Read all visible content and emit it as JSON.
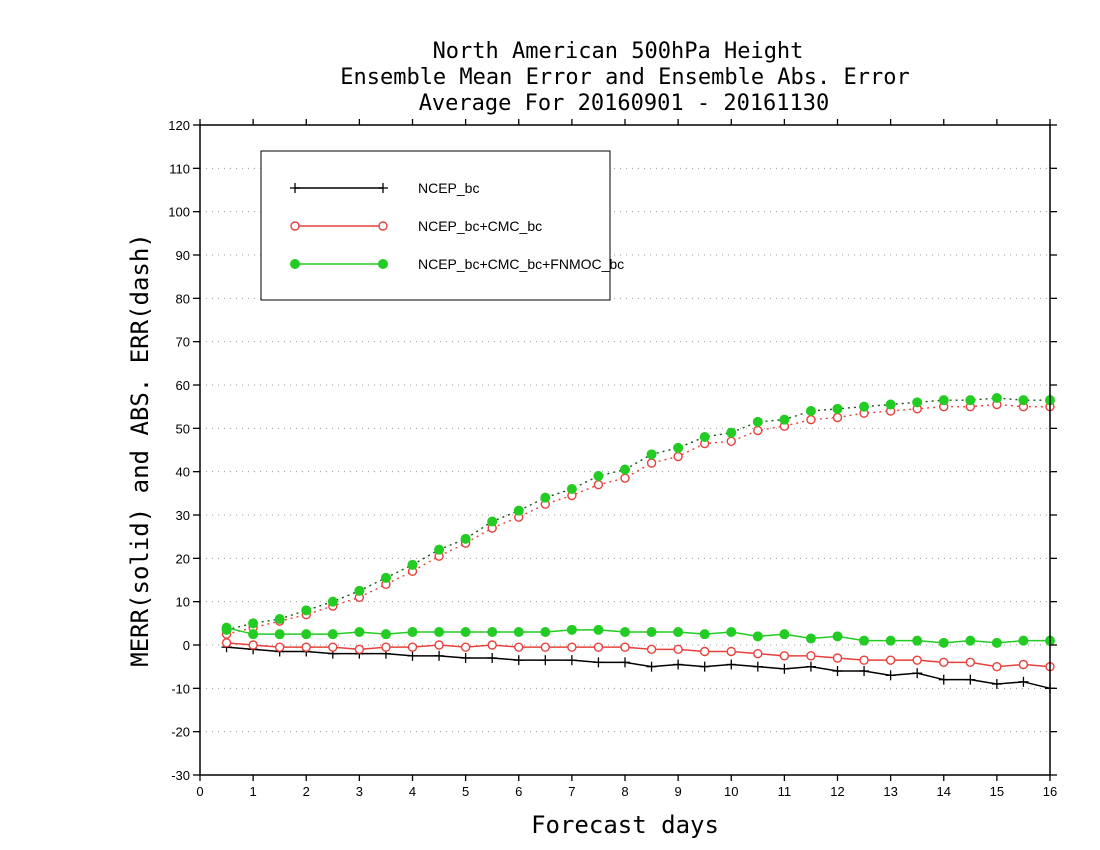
{
  "chart_data": {
    "type": "line",
    "title_lines": [
      "North American 500hPa Height",
      "Ensemble Mean Error and Ensemble Abs. Error",
      "Average For 20160901 - 20161130"
    ],
    "xlabel": "Forecast days",
    "ylabel": "MERR(solid) and ABS. ERR(dash)",
    "xlim": [
      0,
      16
    ],
    "ylim": [
      -30,
      120
    ],
    "xticks": [
      0,
      1,
      2,
      3,
      4,
      5,
      6,
      7,
      8,
      9,
      10,
      11,
      12,
      13,
      14,
      15,
      16
    ],
    "yticks": [
      -30,
      -20,
      -10,
      0,
      10,
      20,
      30,
      40,
      50,
      60,
      70,
      80,
      90,
      100,
      110,
      120
    ],
    "grid": true,
    "legend_position": "top-left",
    "x": [
      0.5,
      1,
      1.5,
      2,
      2.5,
      3,
      3.5,
      4,
      4.5,
      5,
      5.5,
      6,
      6.5,
      7,
      7.5,
      8,
      8.5,
      9,
      9.5,
      10,
      10.5,
      11,
      11.5,
      12,
      12.5,
      13,
      13.5,
      14,
      14.5,
      15,
      15.5,
      16
    ],
    "series": [
      {
        "name": "NCEP_bc",
        "color": "#000000",
        "marker": "plus",
        "mean_error": [
          -0.5,
          -1,
          -1.5,
          -1.5,
          -2,
          -2,
          -2,
          -2.5,
          -2.5,
          -3,
          -3,
          -3.5,
          -3.5,
          -3.5,
          -4,
          -4,
          -5,
          -4.5,
          -5,
          -4.5,
          -5,
          -5.5,
          -5,
          -6,
          -6,
          -7,
          -6.5,
          -8,
          -8,
          -9,
          -8.5,
          -10
        ],
        "abs_error": []
      },
      {
        "name": "NCEP_bc+CMC_bc",
        "color": "#e8403a",
        "marker": "open-circle",
        "mean_error": [
          0.5,
          0,
          -0.5,
          -0.5,
          -0.5,
          -1,
          -0.5,
          -0.5,
          0,
          -0.5,
          0,
          -0.5,
          -0.5,
          -0.5,
          -0.5,
          -0.5,
          -1,
          -1,
          -1.5,
          -1.5,
          -2,
          -2.5,
          -2.5,
          -3,
          -3.5,
          -3.5,
          -3.5,
          -4,
          -4,
          -5,
          -4.5,
          -5
        ],
        "abs_error": [
          2.5,
          4,
          5.5,
          7,
          9,
          11,
          14,
          17,
          20.5,
          23.5,
          27,
          29.5,
          32.5,
          34.5,
          37,
          38.5,
          42,
          43.5,
          46.5,
          47,
          49.5,
          50.5,
          52,
          52.5,
          53.5,
          54,
          54.5,
          55,
          55,
          55.5,
          55,
          55
        ]
      },
      {
        "name": "NCEP_bc+CMC_bc+FNMOC_bc",
        "color": "#22cc22",
        "marker": "filled-circle",
        "mean_error": [
          4,
          2.5,
          2.5,
          2.5,
          2.5,
          3,
          2.5,
          3,
          3,
          3,
          3,
          3,
          3,
          3.5,
          3.5,
          3,
          3,
          3,
          2.5,
          3,
          2,
          2.5,
          1.5,
          2,
          1,
          1,
          1,
          0.5,
          1,
          0.5,
          1,
          1
        ],
        "abs_error": [
          3.5,
          5,
          6,
          8,
          10,
          12.5,
          15.5,
          18.5,
          22,
          24.5,
          28.5,
          31,
          34,
          36,
          39,
          40.5,
          44,
          45.5,
          48,
          49,
          51.5,
          52,
          54,
          54.5,
          55,
          55.5,
          56,
          56.5,
          56.5,
          57,
          56.5,
          56.5
        ]
      }
    ]
  }
}
